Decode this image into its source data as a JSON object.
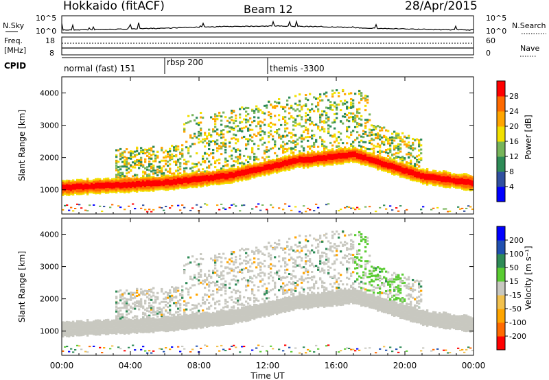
{
  "header": {
    "station": "Hokkaido (fitACF)",
    "beam": "Beam 12",
    "date": "28/Apr/2015"
  },
  "noise_panel": {
    "left_label": "N.Sky",
    "right_label": "N.Search",
    "tick_top": "10^5",
    "tick_bottom": "10^0"
  },
  "freq_panel": {
    "left_label_line1": "Freq.",
    "left_label_line2": "[MHz]",
    "left_tick_top": "18",
    "left_tick_bottom": "8",
    "right_tick_top": "60",
    "right_tick_bottom": "0",
    "right_label": "Nave"
  },
  "cpid_panel": {
    "label": "CPID",
    "segments": [
      {
        "text": "normal (fast) 151",
        "start_hour": 0
      },
      {
        "text": "rbsp 200",
        "start_hour": 6
      },
      {
        "text": "themis -3300",
        "start_hour": 12
      }
    ]
  },
  "chart_data": [
    {
      "type": "heatmap",
      "name": "power",
      "ylabel": "Slant Range [km]",
      "y_ticks": [
        "1000",
        "2000",
        "3000",
        "4000"
      ],
      "ylim": [
        250,
        4500
      ],
      "colorbar_label": "Power [dB]",
      "colorbar_ticks": [
        "28",
        "24",
        "20",
        "16",
        "12",
        "8",
        "4"
      ]
    },
    {
      "type": "heatmap",
      "name": "velocity",
      "ylabel": "Slant Range [km]",
      "y_ticks": [
        "1000",
        "2000",
        "3000",
        "4000"
      ],
      "ylim": [
        250,
        4500
      ],
      "colorbar_label": "Velocity [m s⁻¹]",
      "colorbar_ticks": [
        "200",
        "100",
        "50",
        "15",
        "-15",
        "-50",
        "-100",
        "-200"
      ]
    }
  ],
  "x_axis": {
    "label": "Time UT",
    "ticks": [
      "00:00",
      "04:00",
      "08:00",
      "12:00",
      "16:00",
      "20:00",
      "00:00"
    ],
    "hours": [
      0,
      4,
      8,
      12,
      16,
      20,
      24
    ]
  },
  "colors": {
    "power_scale": [
      "#0000ff",
      "#3050a0",
      "#2e8b57",
      "#77b55a",
      "#f2e000",
      "#ffa500",
      "#ff6a00",
      "#ff0000"
    ],
    "velocity_scale": [
      "#ff0000",
      "#ff6a00",
      "#ffa500",
      "#f2c14e",
      "#c8c8c0",
      "#5acc32",
      "#2e8b57",
      "#2050b0",
      "#0000ff"
    ],
    "ground_scatter": "#c8c8c0"
  }
}
